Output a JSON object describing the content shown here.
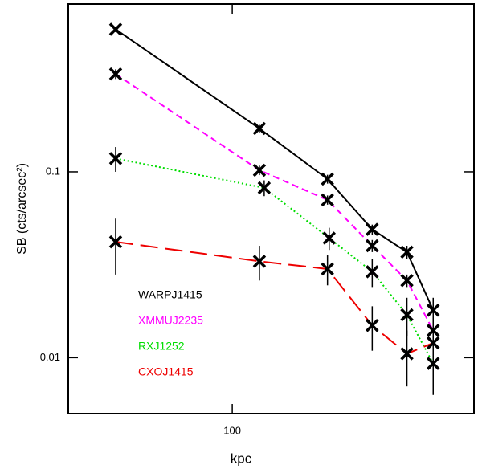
{
  "chart_data": {
    "type": "line",
    "xlabel": "kpc",
    "ylabel": "SB (cts/arcsec²)",
    "xlog": true,
    "ylog": true,
    "xlim": [
      35,
      470
    ],
    "xticks": [
      100
    ],
    "ylim": [
      0.005,
      0.8
    ],
    "yticks": [
      0.01,
      0.1
    ],
    "series": [
      {
        "name": "WARPJ1415",
        "color": "#000000",
        "linestyle": "solid",
        "x": [
          47.4,
          119,
          184,
          245,
          306,
          362
        ],
        "values": [
          0.585,
          0.171,
          0.0914,
          0.049,
          0.037,
          0.018
        ],
        "errors": [
          0.02,
          0.008,
          0.005,
          0.003,
          0.003,
          0.003
        ]
      },
      {
        "name": "XMMUJ2235",
        "color": "#ff00ff",
        "linestyle": "dashed",
        "x": [
          47.4,
          119,
          184,
          245,
          306,
          362
        ],
        "values": [
          0.336,
          0.102,
          0.0706,
          0.04,
          0.026,
          0.014
        ],
        "errors": [
          0.02,
          0.006,
          0.004,
          0.003,
          0.002,
          0.002
        ]
      },
      {
        "name": "RXJ1252",
        "color": "#00dd00",
        "linestyle": "dotted",
        "x": [
          47.4,
          122.7,
          186,
          245,
          306,
          362
        ],
        "values": [
          0.118,
          0.082,
          0.044,
          0.029,
          0.017,
          0.0093
        ],
        "errors": [
          0.018,
          0.008,
          0.006,
          0.005,
          0.004,
          0.003
        ]
      },
      {
        "name": "CXOJ1415",
        "color": "#ee0000",
        "linestyle": "longdash",
        "x": [
          47.4,
          119,
          184,
          245,
          306,
          362
        ],
        "values": [
          0.042,
          0.033,
          0.03,
          0.0149,
          0.0105,
          0.012
        ],
        "errors": [
          0.014,
          0.007,
          0.0055,
          0.004,
          0.0035,
          0.002
        ]
      }
    ]
  }
}
